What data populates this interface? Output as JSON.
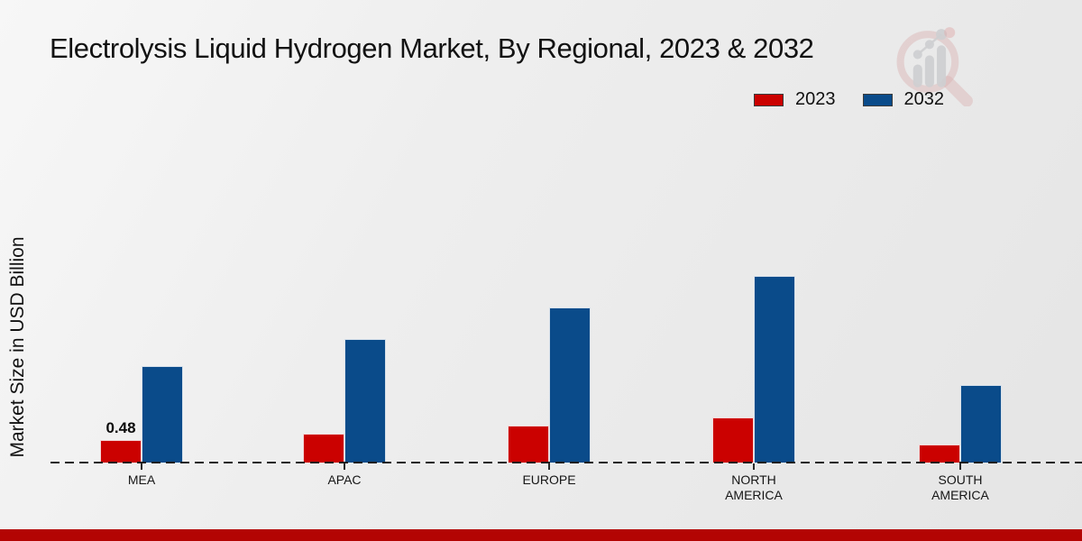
{
  "page_title": "Electrolysis Liquid Hydrogen Market, By Regional, 2023 & 2032",
  "colors": {
    "series_2023_red": "#cb0100",
    "series_2032_blue": "#0a4b8a",
    "footer_accent_red": "#b30403",
    "baseline": "#1f1f1f",
    "background": "#ededed",
    "text": "#141414"
  },
  "watermark_icon": "magnifier-bar-chart-logo",
  "legend": {
    "position": "top-right"
  },
  "chart_data": {
    "type": "bar",
    "title": "Electrolysis Liquid Hydrogen Market, By Regional, 2023 & 2032",
    "xlabel": "",
    "ylabel": "Market Size in USD Billion",
    "categories": [
      "MEA",
      "APAC",
      "EUROPE",
      "NORTH AMERICA",
      "SOUTH AMERICA"
    ],
    "category_label_lines": [
      [
        "MEA"
      ],
      [
        "APAC"
      ],
      [
        "EUROPE"
      ],
      [
        "NORTH",
        "AMERICA"
      ],
      [
        "SOUTH",
        "AMERICA"
      ]
    ],
    "series": [
      {
        "name": "2023",
        "color": "#cb0100",
        "values": [
          0.48,
          0.61,
          0.78,
          0.95,
          0.39
        ]
      },
      {
        "name": "2032",
        "color": "#0a4b8a",
        "values": [
          2.03,
          2.6,
          3.27,
          3.95,
          1.63
        ]
      }
    ],
    "data_labels": [
      {
        "category": "MEA",
        "series": "2023",
        "text": "0.48"
      }
    ],
    "ylim": [
      0,
      4.3
    ],
    "grid": false,
    "y_axis_ticks_visible": false,
    "x_axis_style": "dashed-baseline-with-ticks",
    "legend_position": "top-right",
    "legend_labels": [
      "2023",
      "2032"
    ]
  }
}
